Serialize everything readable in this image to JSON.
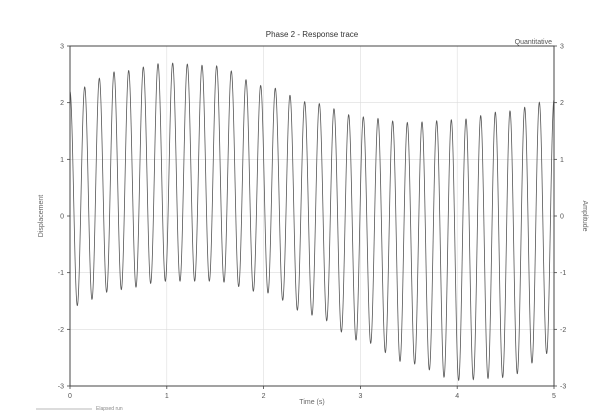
{
  "chart_data": {
    "type": "line",
    "title": "Phase 2 - Response trace",
    "corner_note": "Quantitative",
    "xlabel": "Time (s)",
    "ylabel_left": "Displacement",
    "ylabel_right": "Amplitude",
    "footer_note": "Elapsed run",
    "xlim": [
      0,
      5
    ],
    "ylim": [
      -3,
      3
    ],
    "x_ticks": [
      "0",
      "1",
      "2",
      "3",
      "4",
      "5"
    ],
    "y_ticks_left": [
      "3",
      "2",
      "1",
      "0",
      "-1",
      "-2",
      "-3"
    ],
    "y_ticks_right": [
      "3",
      "2",
      "1",
      "0",
      "-1",
      "-2",
      "-3"
    ],
    "grid": true,
    "line_color": "#555555",
    "series": [
      {
        "oscillation_cycles": 33,
        "upper_envelope": {
          "x": [
            0,
            0.5,
            1,
            1.5,
            2,
            2.5,
            3,
            3.5,
            4,
            4.5,
            5
          ],
          "y": [
            2.2,
            2.55,
            2.7,
            2.65,
            2.3,
            2.0,
            1.75,
            1.65,
            1.7,
            1.85,
            2.05
          ]
        },
        "lower_envelope": {
          "x": [
            0,
            0.5,
            1,
            1.5,
            2,
            2.5,
            3,
            3.5,
            4,
            4.5,
            5
          ],
          "y": [
            -1.6,
            -1.3,
            -1.15,
            -1.15,
            -1.35,
            -1.75,
            -2.2,
            -2.6,
            -2.9,
            -2.85,
            -2.4
          ]
        }
      }
    ]
  }
}
